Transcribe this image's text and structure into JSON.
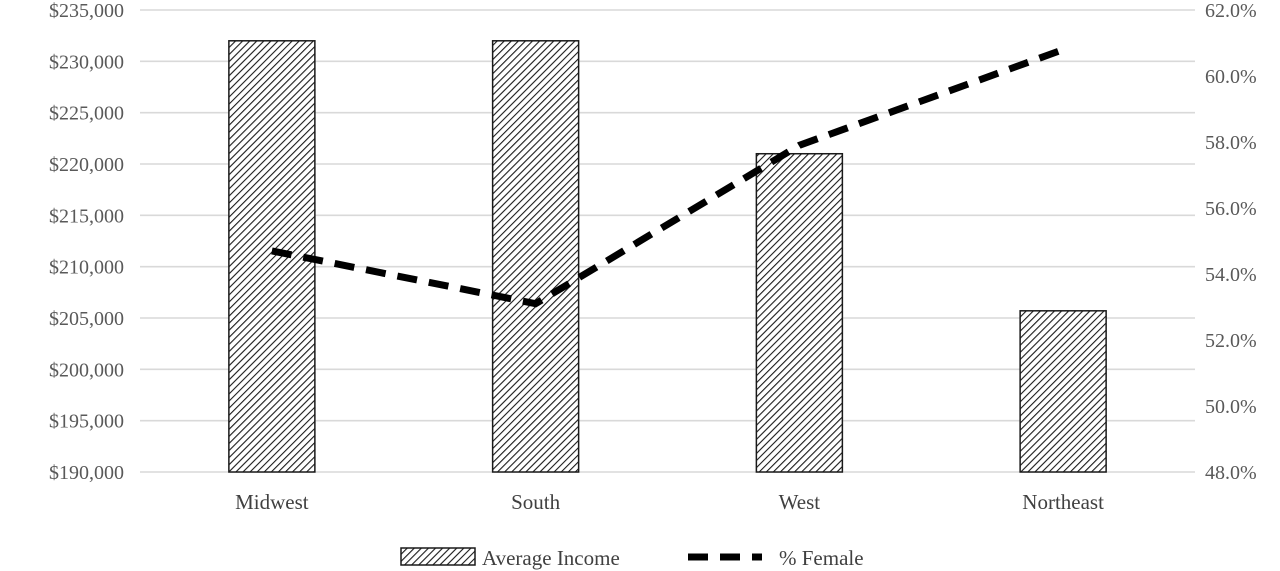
{
  "chart_data": {
    "type": "bar",
    "categories": [
      "Midwest",
      "South",
      "West",
      "Northeast"
    ],
    "series": [
      {
        "name": "Average Income",
        "type": "bar",
        "axis": "left",
        "values": [
          232000,
          232000,
          221000,
          205700
        ]
      },
      {
        "name": "% Female",
        "type": "line",
        "axis": "right",
        "style": "dashed",
        "values": [
          54.7,
          53.1,
          57.9,
          60.8
        ]
      }
    ],
    "y_left": {
      "ylim": [
        190000,
        235000
      ],
      "ticks": [
        235000,
        230000,
        225000,
        220000,
        215000,
        210000,
        205000,
        200000,
        195000,
        190000
      ],
      "tick_labels": [
        "$235,000",
        "$230,000",
        "$225,000",
        "$220,000",
        "$215,000",
        "$210,000",
        "$205,000",
        "$200,000",
        "$195,000",
        "$190,000"
      ]
    },
    "y_right": {
      "ylim": [
        48.0,
        62.0
      ],
      "ticks": [
        62,
        60,
        58,
        56,
        54,
        52,
        50,
        48
      ],
      "tick_labels": [
        "62.0%",
        "60.0%",
        "58.0%",
        "56.0%",
        "54.0%",
        "52.0%",
        "50.0%",
        "48.0%"
      ]
    },
    "title": "",
    "xlabel": "",
    "ylabel": "",
    "grid": true,
    "legend": {
      "position": "bottom",
      "entries": [
        {
          "label": "Average Income",
          "marker": "hatched-bar"
        },
        {
          "label": "% Female",
          "marker": "dashed-line"
        }
      ]
    },
    "colors": {
      "bar_stroke": "#1a1a1a",
      "line": "#000000",
      "grid": "#d9d9d9",
      "text": "#595959"
    }
  }
}
